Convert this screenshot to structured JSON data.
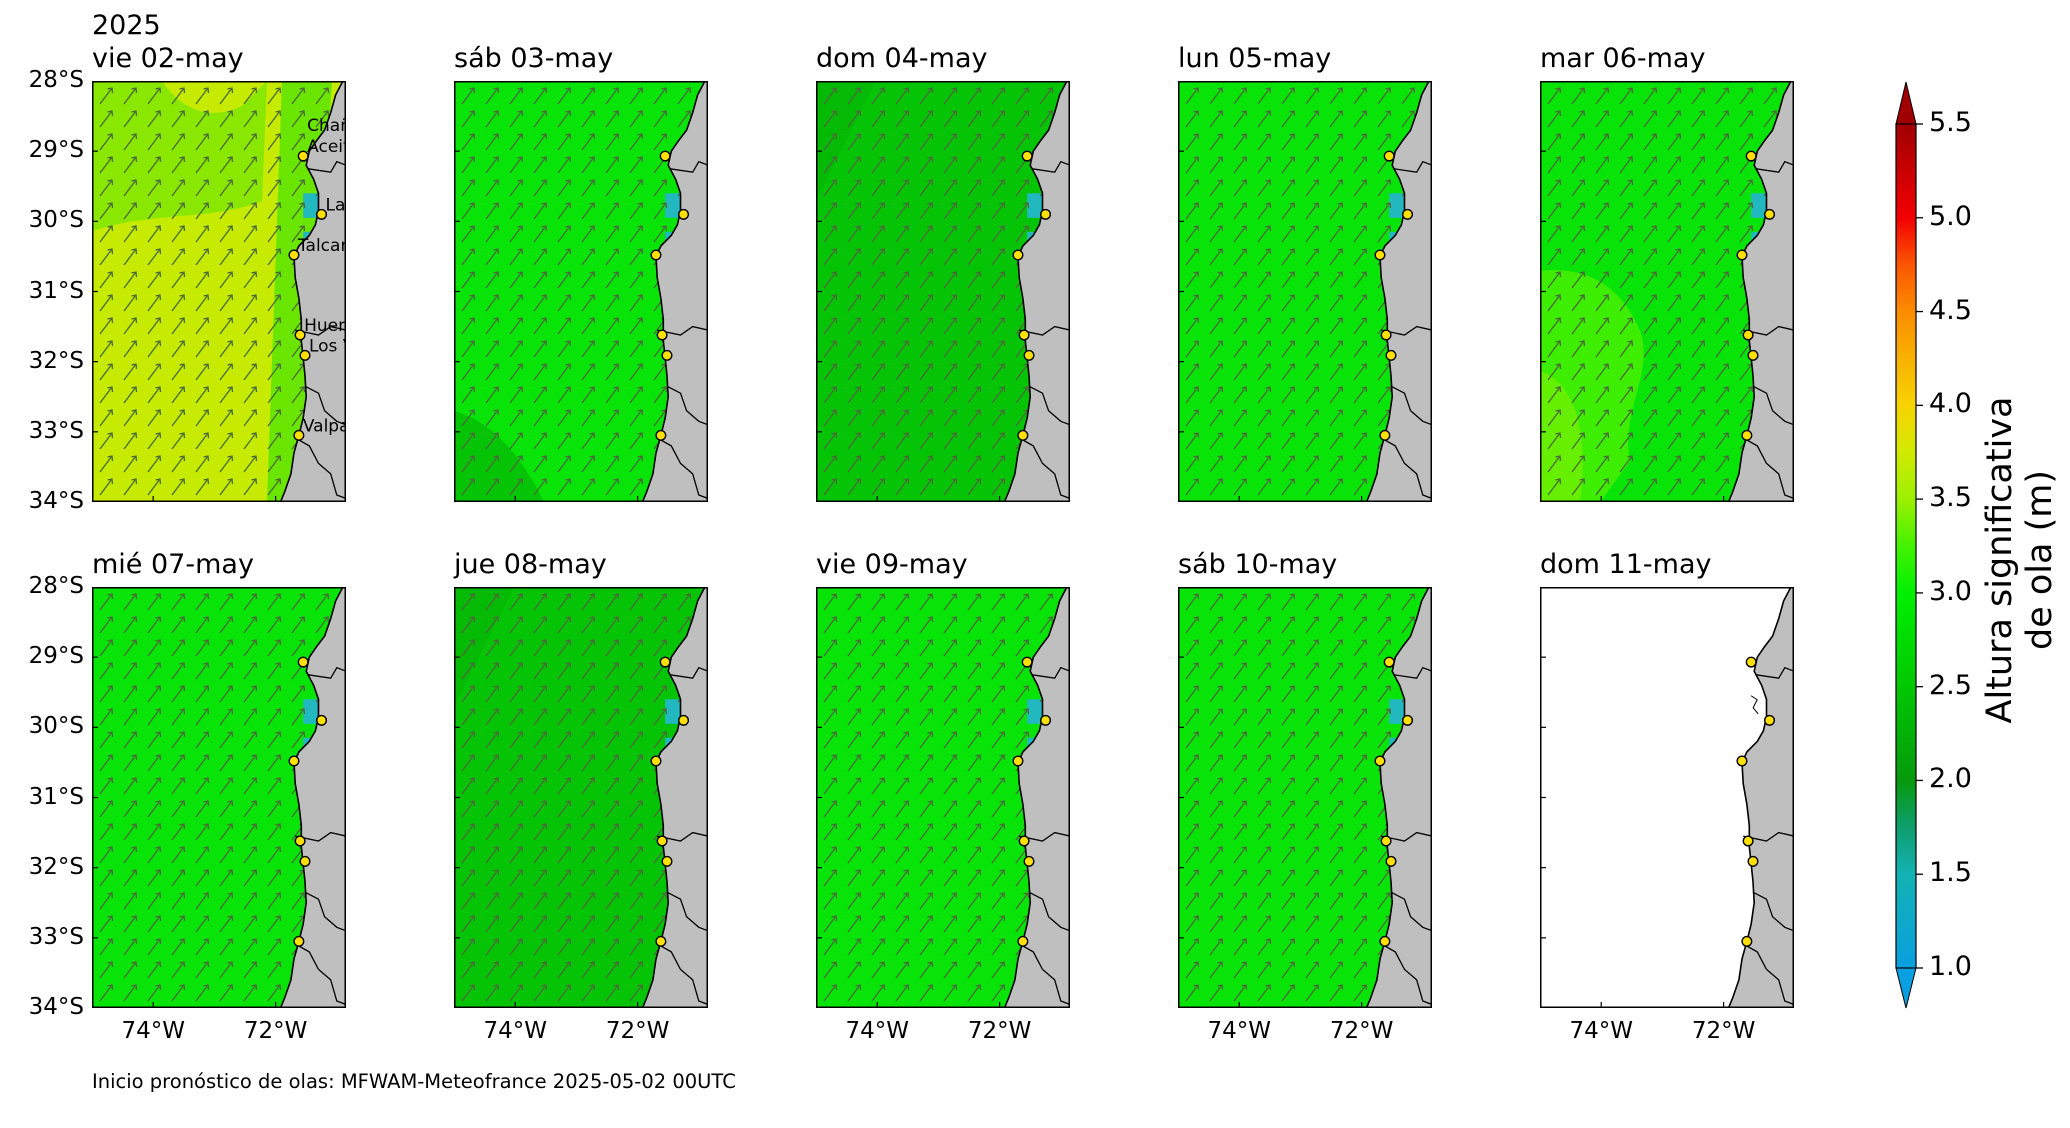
{
  "figure": {
    "year": "2025",
    "footer": "Inicio pronóstico de olas: MFWAM-Meteofrance 2025-05-02 00UTC"
  },
  "panels": [
    {
      "title": "vie 02-may",
      "state": "rough",
      "has_data": true
    },
    {
      "title": "sáb 03-may",
      "state": "mid",
      "has_data": true
    },
    {
      "title": "dom 04-may",
      "state": "calm",
      "has_data": true
    },
    {
      "title": "lun 05-may",
      "state": "mid",
      "has_data": true
    },
    {
      "title": "mar 06-may",
      "state": "midrough",
      "has_data": true
    },
    {
      "title": "mié 07-may",
      "state": "mid",
      "has_data": true
    },
    {
      "title": "jue 08-may",
      "state": "calm",
      "has_data": true
    },
    {
      "title": "vie 09-may",
      "state": "mid",
      "has_data": true
    },
    {
      "title": "sáb 10-may",
      "state": "mid",
      "has_data": true
    },
    {
      "title": "dom 11-may",
      "state": "empty",
      "has_data": false
    }
  ],
  "axes": {
    "lat_ticks": [
      "28°S",
      "29°S",
      "30°S",
      "31°S",
      "32°S",
      "33°S",
      "34°S"
    ],
    "lon_ticks": [
      "74°W",
      "72°W"
    ]
  },
  "locations": [
    {
      "name_lines": [
        "Chañaral de",
        "Aceituno"
      ],
      "lon": -71.55,
      "lat": -29.07
    },
    {
      "name_lines": [
        "La Serena"
      ],
      "lon": -71.25,
      "lat": -29.9
    },
    {
      "name_lines": [
        "Talcaruca"
      ],
      "lon": -71.7,
      "lat": -30.48
    },
    {
      "name_lines": [
        "Huentelauquen"
      ],
      "lon": -71.6,
      "lat": -31.62
    },
    {
      "name_lines": [
        "Los Vilos"
      ],
      "lon": -71.52,
      "lat": -31.91
    },
    {
      "name_lines": [
        "Valparaíso"
      ],
      "lon": -71.62,
      "lat": -33.05
    }
  ],
  "colorbar": {
    "label_lines": [
      "Altura significativa",
      "de ola (m)"
    ],
    "ticks": [
      "1.0",
      "1.5",
      "2.0",
      "2.5",
      "3.0",
      "3.5",
      "4.0",
      "4.5",
      "5.0",
      "5.5"
    ],
    "tick_values": [
      1.0,
      1.5,
      2.0,
      2.5,
      3.0,
      3.5,
      4.0,
      4.5,
      5.0,
      5.5
    ],
    "range": [
      1.0,
      5.5
    ],
    "extend": "both",
    "colors": {
      "1.0": "#0a9fe0",
      "1.5": "#14b2b4",
      "1.75": "#0e9e6e",
      "2.0": "#069a0c",
      "2.5": "#00c800",
      "3.0": "#00f000",
      "3.25": "#44f200",
      "3.5": "#9cf000",
      "3.75": "#d2ea00",
      "4.0": "#f7d300",
      "4.25": "#f9b100",
      "4.5": "#fb8c00",
      "4.75": "#fb5600",
      "5.0": "#f20000",
      "5.5": "#a00000"
    }
  },
  "colors": {
    "land": "#bfbfbf",
    "coastline": "#000000",
    "arrow": "#4a6a3a",
    "marker_fill": "#ffe000",
    "sea_rough": "#c6ea00",
    "sea_mid": "#08e408",
    "sea_calm": "#05c405",
    "sea_nearshore": "#22b8c0"
  }
}
